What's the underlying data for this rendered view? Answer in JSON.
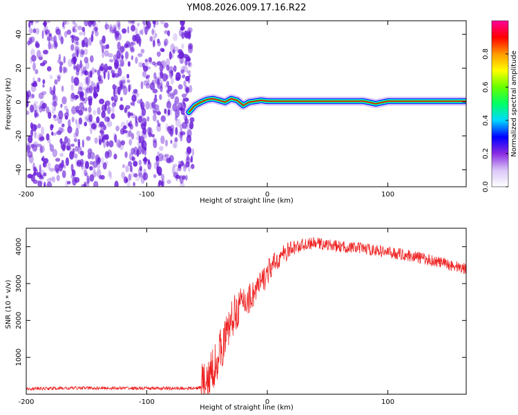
{
  "title": "YM08.2026.009.17.16.R22",
  "colors": {
    "noise": "#6a1fd8",
    "snr_line": "#ee2222",
    "colorbar": [
      "#ffffff",
      "#d9c6f7",
      "#8a2be2",
      "#0000ff",
      "#00d9ff",
      "#00ff66",
      "#66ff00",
      "#ffff00",
      "#ff9900",
      "#ff0000",
      "#ff0099"
    ]
  },
  "chart_data": [
    {
      "type": "heatmap",
      "xlabel": "Height of straight line (km)",
      "ylabel": "Frequency (Hz)",
      "xlim": [
        -200,
        165
      ],
      "ylim": [
        -50,
        48
      ],
      "xticks": [
        -200,
        -100,
        0,
        100
      ],
      "yticks": [
        -40,
        -20,
        0,
        20,
        40
      ],
      "noise_region_x": [
        -200,
        -65
      ],
      "signal": {
        "x": [
          -65,
          -60,
          -55,
          -50,
          -45,
          -40,
          -35,
          -30,
          -25,
          -20,
          -15,
          -10,
          -5,
          0,
          20,
          40,
          60,
          80,
          90,
          100,
          120,
          140,
          165
        ],
        "y": [
          -6,
          -2,
          0,
          1.5,
          2,
          1,
          0,
          2,
          1,
          -2,
          0,
          0.5,
          1,
          0.5,
          0.5,
          0.5,
          0.5,
          0.5,
          -1,
          0.5,
          0.5,
          0.5,
          0.5
        ]
      },
      "colorbar": {
        "label": "Normalized spectral amplitude",
        "range": [
          0,
          1
        ],
        "ticks": [
          0.0,
          0.2,
          0.4,
          0.6,
          0.8
        ]
      }
    },
    {
      "type": "line",
      "xlabel": "Height of straight line (km)",
      "ylabel": "SNR (10 * v/v)",
      "xlim": [
        -200,
        165
      ],
      "ylim": [
        0,
        4500
      ],
      "xticks": [
        -200,
        -100,
        0,
        100
      ],
      "yticks": [
        1000,
        2000,
        3000,
        4000
      ],
      "series": [
        {
          "x": [
            -200,
            -150,
            -100,
            -60,
            -50,
            -45,
            -40,
            -35,
            -30,
            -25,
            -20,
            -15,
            -10,
            -5,
            0,
            10,
            20,
            30,
            40,
            50,
            60,
            80,
            100,
            120,
            140,
            165
          ],
          "y": [
            150,
            170,
            160,
            160,
            220,
            700,
            1100,
            1500,
            2000,
            2300,
            2500,
            2600,
            2800,
            3000,
            3300,
            3700,
            3950,
            4050,
            4100,
            4050,
            4000,
            3950,
            3850,
            3750,
            3600,
            3400
          ]
        }
      ]
    }
  ]
}
